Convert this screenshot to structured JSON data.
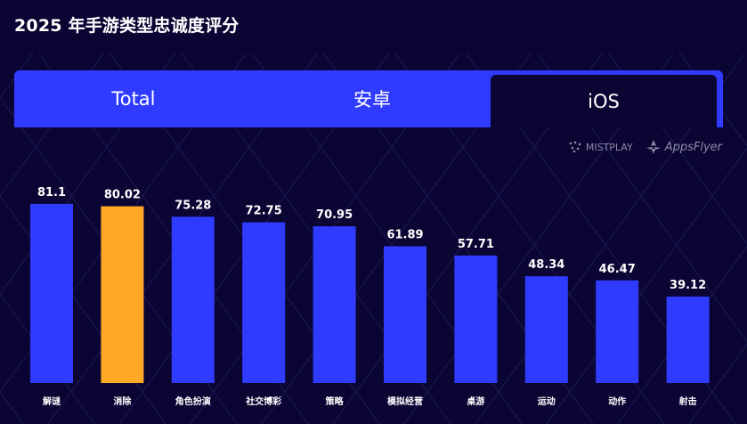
{
  "title": "2025 年手游类型忠诚度评分",
  "tabs": [
    {
      "label": "Total",
      "active": false
    },
    {
      "label": "安卓",
      "active": false
    },
    {
      "label": "iOS",
      "active": true
    }
  ],
  "logos": {
    "mistplay": "MISTPLAY",
    "appsflyer": "AppsFlyer"
  },
  "colors": {
    "background": "#0a0533",
    "tab_bar": "#2f3cff",
    "bar": "#2f3cff",
    "highlight_bar": "#ffa726"
  },
  "chart_data": {
    "type": "bar",
    "categories": [
      "解谜",
      "消除",
      "角色扮演",
      "社交博彩",
      "策略",
      "模拟经营",
      "桌游",
      "运动",
      "动作",
      "射击"
    ],
    "values": [
      81.1,
      80.02,
      75.28,
      72.75,
      70.95,
      61.89,
      57.71,
      48.34,
      46.47,
      39.12
    ],
    "highlight_index": 1,
    "ylim": [
      0,
      100
    ],
    "grid": false,
    "legend": "none"
  }
}
